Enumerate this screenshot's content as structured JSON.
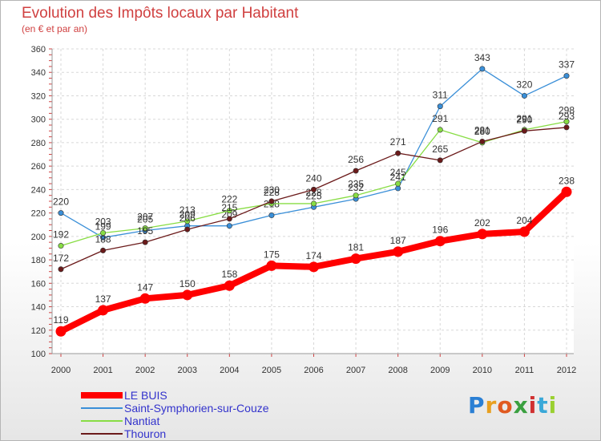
{
  "chart_data": {
    "type": "line",
    "title": "Evolution des Impôts locaux par Habitant",
    "subtitle": "(en € et par an)",
    "x": [
      "2000",
      "2001",
      "2002",
      "2003",
      "2004",
      "2005",
      "2006",
      "2007",
      "2008",
      "2009",
      "2010",
      "2011",
      "2012"
    ],
    "ylim": [
      100,
      360
    ],
    "yticks": [
      "100",
      "120",
      "140",
      "160",
      "180",
      "200",
      "220",
      "240",
      "260",
      "280",
      "300",
      "320",
      "340",
      "360"
    ],
    "grid": true,
    "legend_position": "bottom-left",
    "series": [
      {
        "name": "LE BUIS",
        "color": "#ff0000",
        "values": [
          119,
          137,
          147,
          150,
          158,
          175,
          174,
          181,
          187,
          196,
          202,
          204,
          238
        ],
        "labels": [
          "119",
          "137",
          "147",
          "150",
          "158",
          "175",
          "174",
          "181",
          "187",
          "196",
          "202",
          "204",
          "238"
        ]
      },
      {
        "name": "Saint-Symphorien-sur-Couze",
        "color": "#3a8fd8",
        "values": [
          220,
          199,
          205,
          209,
          209,
          218,
          225,
          232,
          241,
          311,
          343,
          320,
          337
        ],
        "labels": [
          "220",
          "199",
          "205",
          "209",
          "209",
          "218",
          "225",
          "232",
          "241",
          "311",
          "343",
          "320",
          "337"
        ]
      },
      {
        "name": "Nantiat",
        "color": "#88dd44",
        "values": [
          192,
          203,
          207,
          213,
          222,
          228,
          228,
          235,
          245,
          291,
          280,
          291,
          298
        ],
        "labels": [
          "192",
          "203",
          "207",
          "213",
          "222",
          "228",
          "228",
          "235",
          "245",
          "291",
          "280",
          "291",
          "298"
        ]
      },
      {
        "name": "Thouron",
        "color": "#6b1a1a",
        "values": [
          172,
          188,
          195,
          206,
          215,
          230,
          240,
          256,
          271,
          265,
          281,
          290,
          293
        ],
        "labels": [
          "172",
          "188",
          "195",
          "206",
          "215",
          "230",
          "240",
          "256",
          "271",
          "265",
          "281",
          "290",
          "293"
        ]
      }
    ]
  },
  "logo": {
    "text": "Proxiti"
  }
}
